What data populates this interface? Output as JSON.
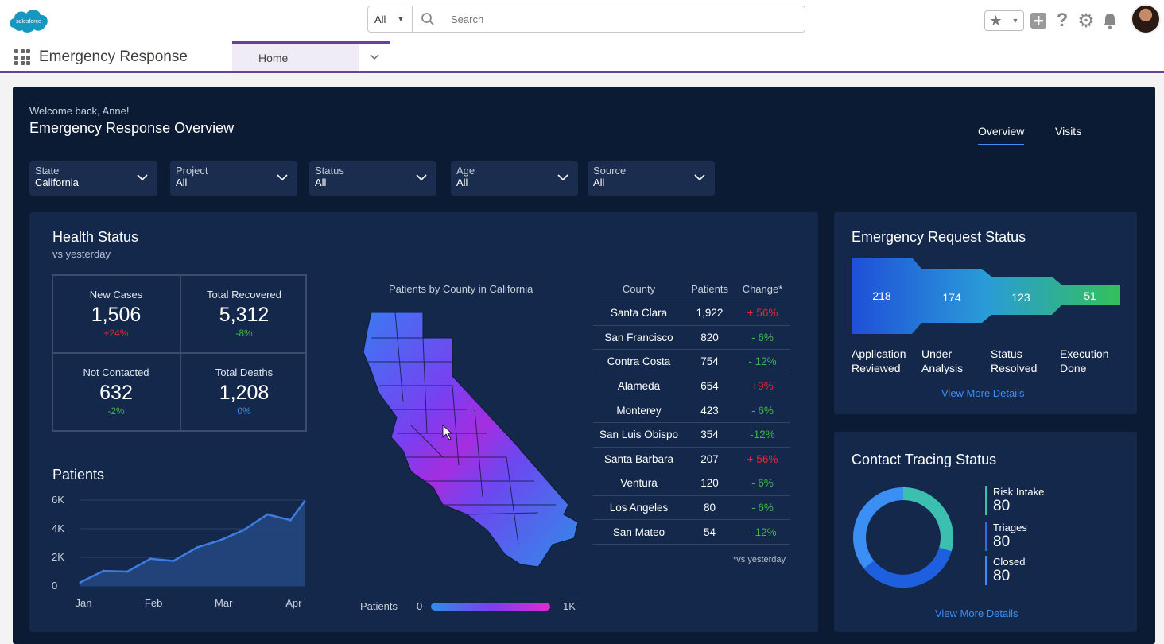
{
  "header": {
    "search_scope": "All",
    "search_placeholder": "Search"
  },
  "appbar": {
    "app_name": "Emergency Response",
    "tab_home": "Home"
  },
  "dashboard": {
    "welcome": "Welcome back, Anne!",
    "title": "Emergency Response Overview",
    "tabs": [
      "Overview",
      "Visits"
    ],
    "filters": [
      {
        "label": "State",
        "value": "California"
      },
      {
        "label": "Project",
        "value": "All"
      },
      {
        "label": "Status",
        "value": "All"
      },
      {
        "label": "Age",
        "value": "All"
      },
      {
        "label": "Source",
        "value": "All"
      }
    ]
  },
  "health": {
    "title": "Health Status",
    "subtitle": "vs yesterday",
    "kpis": [
      {
        "label": "New Cases",
        "value": "1,506",
        "change": "+24%",
        "color": "#e0293a"
      },
      {
        "label": "Total Recovered",
        "value": "5,312",
        "change": "-8%",
        "color": "#3fb54a"
      },
      {
        "label": "Not Contacted",
        "value": "632",
        "change": "-2%",
        "color": "#3fb54a"
      },
      {
        "label": "Total Deaths",
        "value": "1,208",
        "change": "0%",
        "color": "#2f8bf0"
      }
    ],
    "map_title": "Patients by County in California",
    "legend_label": "Patients",
    "legend_min": "0",
    "legend_max": "1K",
    "table": {
      "headers": [
        "County",
        "Patients",
        "Change*"
      ],
      "rows": [
        [
          "Santa Clara",
          "1,922",
          "+ 56%"
        ],
        [
          "San Francisco",
          "820",
          "- 6%"
        ],
        [
          "Contra Costa",
          "754",
          "- 12%"
        ],
        [
          "Alameda",
          "654",
          "+9%"
        ],
        [
          "Monterey",
          "423",
          "- 6%"
        ],
        [
          "San Luis Obispo",
          "354",
          "-12%"
        ],
        [
          "Santa Barbara",
          "207",
          "+ 56%"
        ],
        [
          "Ventura",
          "120",
          "- 6%"
        ],
        [
          "Los Angeles",
          "80",
          "- 6%"
        ],
        [
          "San Mateo",
          "54",
          "- 12%"
        ]
      ],
      "footnote": "*vs yesterday"
    }
  },
  "chart_data": {
    "type": "area",
    "title": "Patients",
    "categories": [
      "Jan",
      "Feb",
      "Mar",
      "Apr"
    ],
    "yticks": [
      "0",
      "2K",
      "4K",
      "6K"
    ],
    "ylim": [
      0,
      6000
    ],
    "x": [
      0,
      0.33,
      0.67,
      1.0,
      1.33,
      1.67,
      2.0,
      2.33,
      2.67,
      3.0
    ],
    "values": [
      250,
      1050,
      1000,
      1900,
      1750,
      2700,
      3200,
      3900,
      5000,
      4600
    ],
    "x_end": 3.2,
    "y_end": 5900,
    "color": "#3e7de0"
  },
  "emergency": {
    "title": "Emergency Request Status",
    "stages": [
      {
        "value": "218",
        "label1": "Application",
        "label2": "Reviewed"
      },
      {
        "value": "174",
        "label1": "Under",
        "label2": "Analysis"
      },
      {
        "value": "123",
        "label1": "Status",
        "label2": "Resolved"
      },
      {
        "value": "51",
        "label1": "Execution",
        "label2": "Done"
      }
    ],
    "link": "View More Details"
  },
  "tracing": {
    "title": "Contact Tracing Status",
    "items": [
      {
        "label": "Risk Intake",
        "value": "80",
        "color": "#3bc0b0"
      },
      {
        "label": "Triages",
        "value": "80",
        "color": "#2a6fe3"
      },
      {
        "label": "Closed",
        "value": "80",
        "color": "#3b8ef4"
      }
    ],
    "link": "View More Details"
  }
}
